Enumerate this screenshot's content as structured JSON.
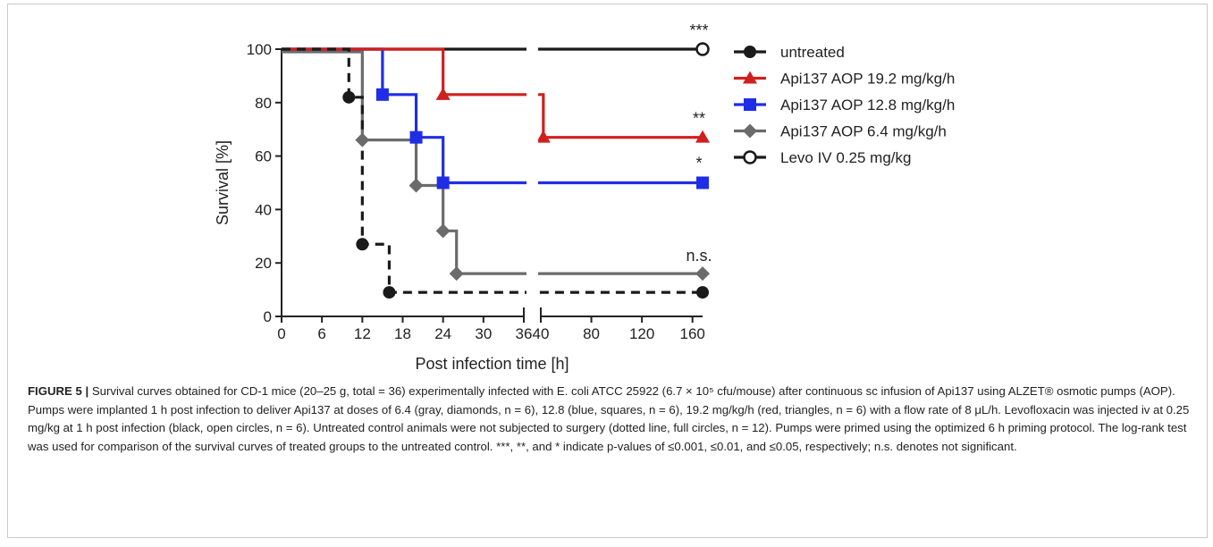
{
  "figure": {
    "caption_label": "FIGURE 5 |",
    "caption_text": " Survival curves obtained for CD-1 mice (20–25 g, total = 36) experimentally infected with E. coli ATCC 25922 (6.7 × 10⁵ cfu/mouse) after continuous sc infusion of Api137 using ALZET® osmotic pumps (AOP). Pumps were implanted 1 h post infection to deliver Api137 at doses of 6.4 (gray, diamonds, n = 6), 12.8 (blue, squares, n = 6), 19.2 mg/kg/h (red, triangles, n = 6) with a flow rate of 8 μL/h. Levofloxacin was injected iv at 0.25 mg/kg at 1 h post infection (black, open circles, n = 6). Untreated control animals were not subjected to surgery (dotted line, full circles, n = 12). Pumps were primed using the optimized 6 h priming protocol. The log-rank test was used for comparison of the survival curves of treated groups to the untreated control. ***, **, and * indicate p-values of ≤0.001, ≤0.01, and ≤0.05, respectively; n.s. denotes not significant."
  },
  "chart_data": {
    "type": "line",
    "step": true,
    "xlabel": "Post infection time [h]",
    "ylabel": "Survival [%]",
    "ylim": [
      0,
      100
    ],
    "yticks": [
      "0",
      "20",
      "40",
      "60",
      "80",
      "100"
    ],
    "x_axis_segments": [
      {
        "range": [
          0,
          36
        ],
        "ticks": [
          "0",
          "6",
          "12",
          "18",
          "24",
          "30",
          "36"
        ]
      },
      {
        "range": [
          40,
          168
        ],
        "ticks": [
          "40",
          "80",
          "120",
          "160"
        ]
      }
    ],
    "legend_position": "right",
    "colors": {
      "untreated": "#1a1a1a",
      "red": "#d01f1f",
      "blue": "#1f2ee6",
      "gray": "#6b6b6b",
      "levo": "#1a1a1a"
    },
    "series": [
      {
        "name": "untreated",
        "marker": "filled-circle",
        "line": "dashed",
        "points": [
          [
            10,
            82
          ],
          [
            12,
            27
          ],
          [
            16,
            9
          ],
          [
            168,
            9
          ]
        ],
        "steps": [
          [
            0,
            100
          ],
          [
            10,
            100
          ],
          [
            10,
            82
          ],
          [
            12,
            82
          ],
          [
            12,
            27
          ],
          [
            16,
            27
          ],
          [
            16,
            9
          ],
          [
            168,
            9
          ]
        ]
      },
      {
        "name": "Api137 AOP 19.2 mg/kg/h",
        "marker": "triangle",
        "line": "solid",
        "significance": "",
        "points": [
          [
            24,
            83
          ],
          [
            42,
            67
          ],
          [
            168,
            67
          ]
        ],
        "steps": [
          [
            0,
            100
          ],
          [
            24,
            100
          ],
          [
            24,
            83
          ],
          [
            42,
            83
          ],
          [
            42,
            67
          ],
          [
            168,
            67
          ]
        ]
      },
      {
        "name": "Api137 AOP 12.8 mg/kg/h",
        "marker": "square",
        "line": "solid",
        "points": [
          [
            15,
            83
          ],
          [
            20,
            67
          ],
          [
            24,
            50
          ],
          [
            168,
            50
          ]
        ],
        "steps": [
          [
            0,
            100
          ],
          [
            15,
            100
          ],
          [
            15,
            83
          ],
          [
            20,
            83
          ],
          [
            20,
            67
          ],
          [
            24,
            67
          ],
          [
            24,
            50
          ],
          [
            168,
            50
          ]
        ]
      },
      {
        "name": "Api137 AOP 6.4 mg/kg/h",
        "marker": "diamond",
        "line": "solid",
        "points": [
          [
            12,
            66
          ],
          [
            20,
            49
          ],
          [
            24,
            32
          ],
          [
            26,
            16
          ],
          [
            168,
            16
          ]
        ],
        "steps": [
          [
            0,
            99
          ],
          [
            12,
            99
          ],
          [
            12,
            66
          ],
          [
            20,
            66
          ],
          [
            20,
            49
          ],
          [
            24,
            49
          ],
          [
            24,
            32
          ],
          [
            26,
            32
          ],
          [
            26,
            16
          ],
          [
            168,
            16
          ]
        ]
      },
      {
        "name": "Levo IV 0.25 mg/kg",
        "marker": "open-circle",
        "line": "solid",
        "points": [
          [
            168,
            100
          ]
        ],
        "steps": [
          [
            0,
            100
          ],
          [
            168,
            100
          ]
        ]
      }
    ],
    "annotations": [
      {
        "text": "***",
        "x": 168,
        "y": 100
      },
      {
        "text": "**",
        "x": 168,
        "y": 67
      },
      {
        "text": "*",
        "x": 168,
        "y": 50
      },
      {
        "text": "n.s.",
        "x": 168,
        "y": 16
      }
    ]
  }
}
